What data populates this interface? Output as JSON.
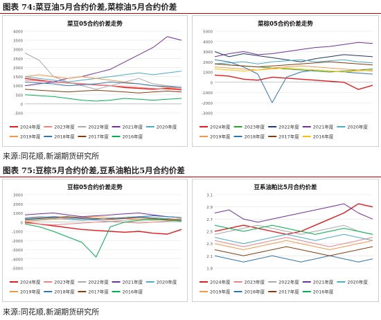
{
  "figures": [
    {
      "label": "图表 74:菜豆油5月合约价差,菜棕油5月合约价差",
      "source": "来源:同花顺,新湖期货研究所"
    },
    {
      "label": "图表 75:豆棕5月合约价差,豆系油粕比5月合约价差",
      "source": "来源:同花顺,新湖期货研究所"
    }
  ],
  "colors": {
    "header_rule": "#c00000",
    "series": {
      "2024年度": "#e41a1c",
      "2023年度": "#f08080",
      "2022年度": "#a9a9a9",
      "2021年度": "#7030a0",
      "2020年度": "#4bacc6",
      "2019年度": "#f79646",
      "2018年度": "#2e75b6",
      "2017年度": "#843c0c",
      "2016年度": "#00b050"
    },
    "rape_palm_series": {
      "2024年度": "#e41a1c",
      "2023年度": "#2ca02c",
      "2022年度": "#1f3864",
      "2021年度": "#7030a0",
      "2020年度": "#4bacc6",
      "2019年度": "#f79646",
      "2018年度": "#2e75b6",
      "2017年度": "#843c0c",
      "2016年度": "#ffc000"
    }
  },
  "chart_data": [
    {
      "type": "line",
      "title": "菜豆05合约价差走势",
      "ylim": [
        -500,
        4000
      ],
      "yticks": [
        -500,
        0,
        500,
        1000,
        1500,
        2000,
        2500,
        3000,
        3500,
        4000
      ],
      "grid": true,
      "legend_position": "bottom",
      "series": [
        {
          "name": "2024年度",
          "values": [
            1400,
            1300,
            1200,
            1150,
            1100,
            1050,
            1000,
            900,
            850,
            800,
            850,
            800
          ]
        },
        {
          "name": "2023年度",
          "values": [
            1300,
            1250,
            1200,
            1150,
            1100,
            1050,
            1000,
            950,
            900,
            850,
            800,
            750
          ]
        },
        {
          "name": "2022年度",
          "values": [
            2800,
            2400,
            1500,
            1200,
            1000,
            800,
            1000,
            1200,
            1400,
            1100,
            1000,
            900
          ]
        },
        {
          "name": "2021年度",
          "values": [
            1000,
            1100,
            1200,
            1400,
            1500,
            1700,
            1900,
            2300,
            2700,
            3100,
            3700,
            3500
          ]
        },
        {
          "name": "2020年度",
          "values": [
            1500,
            1400,
            1300,
            1200,
            1300,
            1400,
            1500,
            1600,
            1700,
            1600,
            1700,
            1800
          ]
        },
        {
          "name": "2019年度",
          "values": [
            1500,
            1600,
            1500,
            1400,
            1500,
            1400,
            1300,
            1200,
            1100,
            1000,
            900,
            900
          ]
        },
        {
          "name": "2018年度",
          "values": [
            1200,
            1150,
            1100,
            1000,
            1050,
            1100,
            1200,
            1150,
            1100,
            1000,
            950,
            900
          ]
        },
        {
          "name": "2017年度",
          "values": [
            800,
            750,
            700,
            650,
            700,
            750,
            700,
            650,
            600,
            650,
            700,
            650
          ]
        },
        {
          "name": "2016年度",
          "values": [
            500,
            450,
            400,
            300,
            200,
            150,
            200,
            300,
            250,
            200,
            250,
            300
          ]
        }
      ]
    },
    {
      "type": "line",
      "title": "菜棕05合约价差走势",
      "ylim": [
        -3000,
        5000
      ],
      "yticks": [
        -3000,
        -2000,
        -1000,
        0,
        1000,
        2000,
        3000,
        4000,
        5000
      ],
      "grid": true,
      "legend_position": "bottom",
      "series": [
        {
          "name": "2024年度",
          "values": [
            700,
            600,
            300,
            200,
            500,
            400,
            300,
            200,
            100,
            0,
            -700,
            -300
          ]
        },
        {
          "name": "2023年度",
          "values": [
            1800,
            1700,
            1600,
            1500,
            1400,
            1300,
            1200,
            1100,
            1000,
            1100,
            1200,
            1300
          ]
        },
        {
          "name": "2022年度",
          "values": [
            3000,
            2500,
            2800,
            2600,
            2400,
            2200,
            2000,
            2300,
            2500,
            2700,
            2600,
            2500
          ]
        },
        {
          "name": "2021年度",
          "values": [
            2500,
            2800,
            3000,
            2700,
            2800,
            3000,
            3200,
            3400,
            3500,
            3700,
            3900,
            3800
          ]
        },
        {
          "name": "2020年度",
          "values": [
            1800,
            1900,
            2000,
            1800,
            2000,
            2100,
            2200,
            2000,
            2100,
            2200,
            2000,
            1900
          ]
        },
        {
          "name": "2019年度",
          "values": [
            1500,
            1400,
            1300,
            1200,
            1400,
            1500,
            1600,
            1500,
            1400,
            1300,
            1200,
            1100
          ]
        },
        {
          "name": "2018年度",
          "values": [
            2200,
            2000,
            1500,
            800,
            -2000,
            500,
            1000,
            1200,
            1100,
            1000,
            900,
            800
          ]
        },
        {
          "name": "2017年度",
          "values": [
            1800,
            1700,
            1600,
            1500,
            1600,
            1700,
            1800,
            1900,
            2000,
            1900,
            1800,
            1700
          ]
        },
        {
          "name": "2016年度",
          "values": [
            1300,
            1200,
            1100,
            1200,
            1300,
            1400,
            1300,
            1200,
            1100,
            1000,
            1100,
            1200
          ]
        }
      ]
    },
    {
      "type": "line",
      "title": "豆棕05合约价差走势",
      "ylim": [
        -5000,
        3000
      ],
      "yticks": [
        -5000,
        -4000,
        -3000,
        -2000,
        -1000,
        0,
        1000,
        2000,
        3000
      ],
      "grid": true,
      "legend_position": "bottom",
      "series": [
        {
          "name": "2024年度",
          "values": [
            0,
            -200,
            -400,
            -600,
            -800,
            -900,
            -1000,
            -1100,
            -1000,
            -1200,
            -1300,
            -800
          ]
        },
        {
          "name": "2023年度",
          "values": [
            -100,
            -200,
            -300,
            -200,
            -100,
            0,
            100,
            0,
            -100,
            0,
            100,
            200
          ]
        },
        {
          "name": "2022年度",
          "values": [
            500,
            600,
            500,
            400,
            300,
            200,
            100,
            200,
            300,
            400,
            300,
            200
          ]
        },
        {
          "name": "2021年度",
          "values": [
            800,
            900,
            1000,
            800,
            600,
            700,
            800,
            900,
            1000,
            800,
            600,
            500
          ]
        },
        {
          "name": "2020年度",
          "values": [
            200,
            300,
            400,
            300,
            200,
            300,
            400,
            500,
            600,
            500,
            400,
            300
          ]
        },
        {
          "name": "2019年度",
          "values": [
            100,
            200,
            300,
            400,
            500,
            600,
            500,
            400,
            300,
            200,
            300,
            400
          ]
        },
        {
          "name": "2018年度",
          "values": [
            400,
            500,
            600,
            500,
            400,
            300,
            400,
            500,
            600,
            700,
            600,
            500
          ]
        },
        {
          "name": "2017年度",
          "values": [
            300,
            400,
            500,
            600,
            500,
            400,
            300,
            400,
            500,
            400,
            300,
            200
          ]
        },
        {
          "name": "2016年度",
          "values": [
            -200,
            -500,
            -1000,
            -1600,
            -2200,
            -3800,
            -500,
            0,
            200,
            300,
            200,
            100
          ]
        }
      ]
    },
    {
      "type": "line",
      "title": "豆系油粕比5月合约价差",
      "ylim": [
        1.9,
        3.1
      ],
      "yticks": [
        1.9,
        2.1,
        2.3,
        2.5,
        2.7,
        2.9,
        3.1
      ],
      "grid": true,
      "legend_position": "bottom",
      "series": [
        {
          "name": "2024年度",
          "values": [
            2.5,
            2.55,
            2.6,
            2.55,
            2.5,
            2.45,
            2.5,
            2.6,
            2.7,
            2.8,
            2.95,
            2.9
          ]
        },
        {
          "name": "2023年度",
          "values": [
            2.35,
            2.3,
            2.25,
            2.3,
            2.35,
            2.4,
            2.35,
            2.3,
            2.25,
            2.3,
            2.35,
            2.4
          ]
        },
        {
          "name": "2022年度",
          "values": [
            2.45,
            2.5,
            2.55,
            2.6,
            2.55,
            2.5,
            2.45,
            2.5,
            2.55,
            2.6,
            2.5,
            2.45
          ]
        },
        {
          "name": "2021年度",
          "values": [
            2.8,
            2.85,
            2.7,
            2.65,
            2.7,
            2.75,
            2.8,
            2.85,
            2.9,
            2.95,
            2.8,
            2.7
          ]
        },
        {
          "name": "2020年度",
          "values": [
            2.4,
            2.35,
            2.3,
            2.35,
            2.4,
            2.45,
            2.4,
            2.35,
            2.4,
            2.45,
            2.4,
            2.35
          ]
        },
        {
          "name": "2019年度",
          "values": [
            2.3,
            2.25,
            2.2,
            2.25,
            2.3,
            2.35,
            2.3,
            2.25,
            2.2,
            2.25,
            2.3,
            2.35
          ]
        },
        {
          "name": "2018年度",
          "values": [
            2.1,
            2.05,
            2.0,
            2.05,
            2.1,
            2.05,
            2.0,
            2.05,
            2.1,
            2.05,
            2.0,
            2.05
          ]
        },
        {
          "name": "2017年度",
          "values": [
            2.2,
            2.15,
            2.1,
            2.15,
            2.2,
            2.25,
            2.2,
            2.15,
            2.1,
            2.15,
            2.2,
            2.25
          ]
        },
        {
          "name": "2016年度",
          "values": [
            2.6,
            2.55,
            2.5,
            2.55,
            2.6,
            2.55,
            2.5,
            2.45,
            2.5,
            2.55,
            2.5,
            2.45
          ]
        }
      ]
    }
  ]
}
